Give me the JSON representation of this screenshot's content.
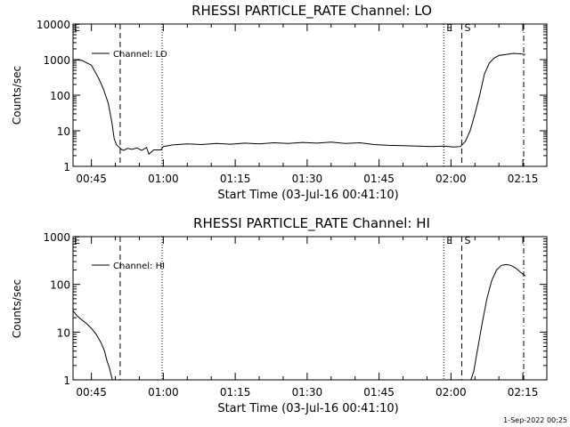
{
  "chart_data": [
    {
      "type": "line",
      "title": "RHESSI PARTICLE_RATE Channel: LO",
      "xlabel": "Start Time (03-Jul-16 00:41:10)",
      "ylabel": "Counts/sec",
      "yscale": "log",
      "ylim": [
        1,
        10000
      ],
      "xlim": [
        "00:41:10",
        "02:20:00"
      ],
      "x_ticks": [
        "00:45",
        "01:00",
        "01:15",
        "01:30",
        "01:45",
        "02:00",
        "02:15"
      ],
      "y_ticks": [
        "1",
        "10",
        "100",
        "1000",
        "10000"
      ],
      "legend": {
        "entries": [
          "Channel: LO"
        ],
        "placement": "top-left"
      },
      "grid": false,
      "markers": [
        {
          "label": "E",
          "x": "00:41:10",
          "style": "dashed"
        },
        {
          "label": "",
          "x": "00:51:00",
          "style": "dashed"
        },
        {
          "label": "",
          "x": "00:59:45",
          "style": "dotted"
        },
        {
          "label": "E",
          "x": "01:58:30",
          "style": "dotted"
        },
        {
          "label": "S",
          "x": "02:02:15",
          "style": "dashed"
        },
        {
          "label": "",
          "x": "02:15:10",
          "style": "dash-dot"
        }
      ],
      "series": [
        {
          "name": "Channel: LO",
          "x": [
            "00:41:10",
            "00:43:00",
            "00:45:00",
            "00:46:30",
            "00:47:30",
            "00:48:30",
            "00:49:15",
            "00:49:45",
            "00:50:15",
            "00:50:45",
            "00:51:15",
            "00:51:45",
            "00:52:30",
            "00:53:30",
            "00:54:30",
            "00:55:30",
            "00:56:30",
            "00:57:00",
            "00:58:00",
            "00:59:30",
            "01:00:00",
            "01:02:00",
            "01:05:00",
            "01:08:00",
            "01:11:00",
            "01:14:00",
            "01:17:00",
            "01:20:00",
            "01:23:00",
            "01:26:00",
            "01:29:00",
            "01:32:00",
            "01:35:00",
            "01:38:00",
            "01:41:00",
            "01:44:00",
            "01:47:00",
            "01:50:00",
            "01:53:00",
            "01:56:00",
            "01:58:30",
            "02:00:30",
            "02:02:00",
            "02:03:00",
            "02:04:00",
            "02:05:00",
            "02:06:00",
            "02:07:00",
            "02:08:00",
            "02:09:00",
            "02:10:00",
            "02:11:30",
            "02:13:00",
            "02:14:30",
            "02:15:30"
          ],
          "y": [
            1000,
            950,
            700,
            300,
            150,
            60,
            18,
            6,
            4,
            3.5,
            3,
            2.8,
            3.2,
            3,
            3.3,
            2.8,
            3.4,
            2.2,
            2.9,
            2.9,
            3.6,
            4,
            4.3,
            4.1,
            4.4,
            4.2,
            4.5,
            4.3,
            4.6,
            4.4,
            4.7,
            4.5,
            4.8,
            4.4,
            4.6,
            4.1,
            3.9,
            3.8,
            3.7,
            3.6,
            3.7,
            3.5,
            3.6,
            5,
            10,
            30,
            100,
            400,
            800,
            1100,
            1300,
            1400,
            1500,
            1450,
            1400
          ]
        }
      ]
    },
    {
      "type": "line",
      "title": "RHESSI PARTICLE_RATE Channel: HI",
      "xlabel": "Start Time (03-Jul-16 00:41:10)",
      "ylabel": "Counts/sec",
      "yscale": "log",
      "ylim": [
        1,
        1000
      ],
      "xlim": [
        "00:41:10",
        "02:20:00"
      ],
      "x_ticks": [
        "00:45",
        "01:00",
        "01:15",
        "01:30",
        "01:45",
        "02:00",
        "02:15"
      ],
      "y_ticks": [
        "1",
        "10",
        "100",
        "1000"
      ],
      "legend": {
        "entries": [
          "Channel: HI"
        ],
        "placement": "top-left"
      },
      "grid": false,
      "markers": [
        {
          "label": "E",
          "x": "00:41:10",
          "style": "dashed"
        },
        {
          "label": "",
          "x": "00:51:00",
          "style": "dashed"
        },
        {
          "label": "",
          "x": "00:59:45",
          "style": "dotted"
        },
        {
          "label": "E",
          "x": "01:58:30",
          "style": "dotted"
        },
        {
          "label": "S",
          "x": "02:02:15",
          "style": "dashed"
        },
        {
          "label": "",
          "x": "02:15:10",
          "style": "dash-dot"
        }
      ],
      "series": [
        {
          "name": "Channel: HI",
          "x": [
            "00:41:10",
            "00:42:00",
            "00:43:00",
            "00:44:00",
            "00:45:00",
            "00:46:00",
            "00:47:00",
            "00:47:45",
            "00:48:15",
            "00:48:45",
            "00:49:10",
            "00:49:30"
          ],
          "y": [
            28,
            22,
            18,
            15,
            12,
            9,
            6,
            4,
            2.5,
            1.8,
            1.2,
            0.9
          ]
        },
        {
          "name": "Channel: HI",
          "x": [
            "02:04:00",
            "02:04:45",
            "02:05:30",
            "02:06:30",
            "02:07:30",
            "02:08:30",
            "02:09:30",
            "02:10:30",
            "02:11:30",
            "02:12:30",
            "02:13:30",
            "02:14:30",
            "02:15:30"
          ],
          "y": [
            0.9,
            1.5,
            4,
            15,
            50,
            120,
            200,
            250,
            260,
            250,
            220,
            180,
            150
          ]
        }
      ]
    }
  ],
  "footer": "1-Sep-2022 00:25"
}
